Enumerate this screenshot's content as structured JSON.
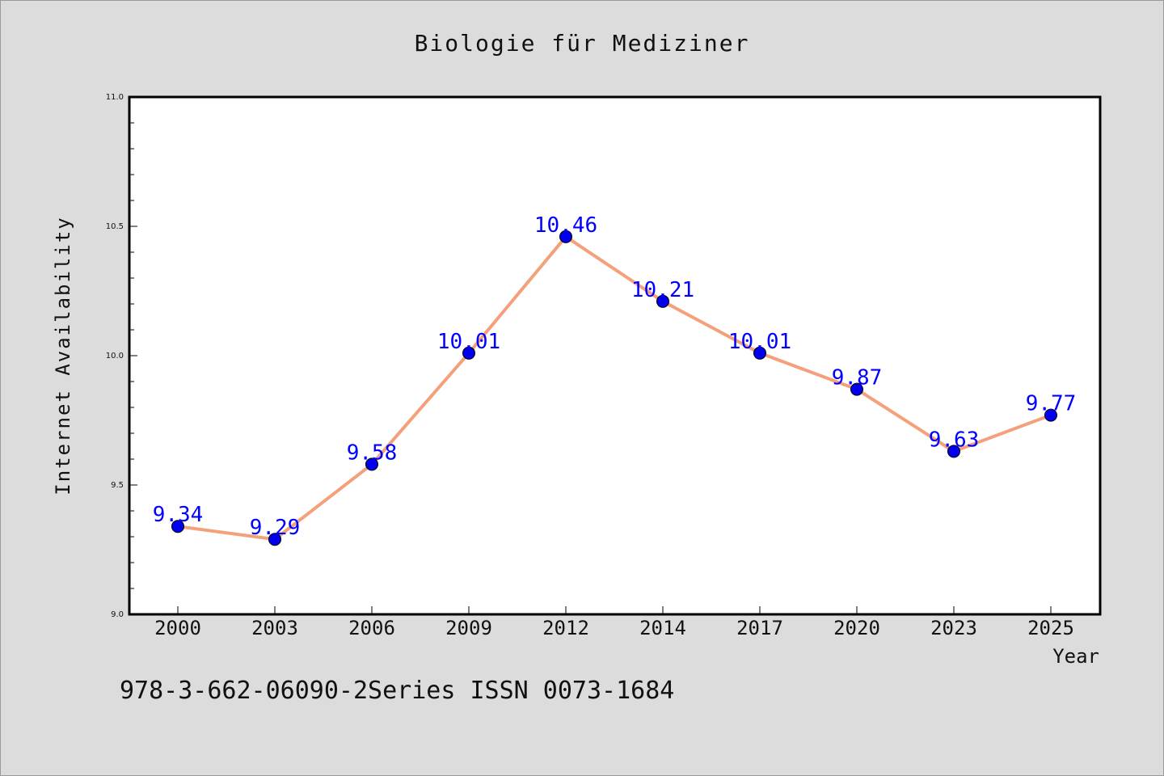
{
  "chart_data": {
    "type": "line",
    "title": "Biologie für Mediziner",
    "xlabel": "Year",
    "ylabel": "Internet Availability",
    "categories": [
      "2000",
      "2003",
      "2006",
      "2009",
      "2012",
      "2014",
      "2017",
      "2020",
      "2023",
      "2025"
    ],
    "values": [
      9.34,
      9.29,
      9.58,
      10.01,
      10.46,
      10.21,
      10.01,
      9.87,
      9.63,
      9.77
    ],
    "data_labels": [
      "9.34",
      "9.29",
      "9.58",
      "10.01",
      "10.46",
      "10.21",
      "10.01",
      "9.87",
      "9.63",
      "9.77"
    ],
    "ylim": [
      9.0,
      11.0
    ],
    "yticks": [
      "9.0",
      "9.5",
      "10.0",
      "10.5",
      "11.0"
    ],
    "grid": false,
    "line_color": "#f4a07a",
    "marker_color": "#0000ee",
    "label_color": "#0000ff",
    "background": "#dcdcdc",
    "plot_background": "#ffffff"
  },
  "footnote": "978-3-662-06090-2Series ISSN 0073-1684"
}
